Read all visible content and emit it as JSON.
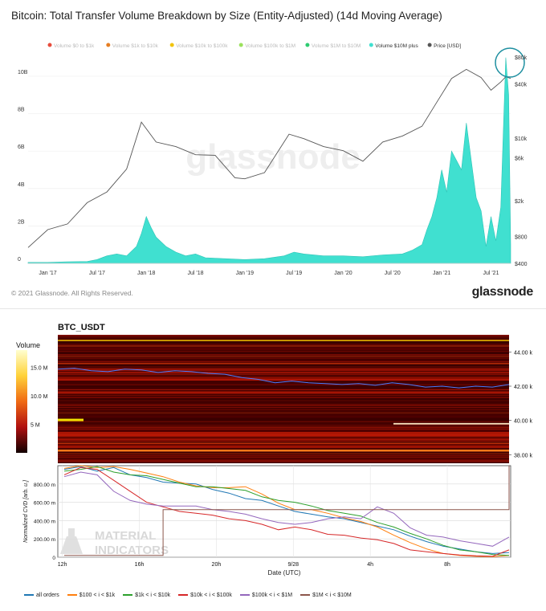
{
  "chart_data": [
    {
      "type": "area",
      "title": "Bitcoin: Total Transfer Volume Breakdown by Size (Entity-Adjusted) (14d Moving Average)",
      "legend": [
        {
          "name": "Volume $0 to $1k",
          "color": "#e74c3c",
          "active": false
        },
        {
          "name": "Volume $1k to $10k",
          "color": "#e67e22",
          "active": false
        },
        {
          "name": "Volume $10k to $100k",
          "color": "#f1c40f",
          "active": false
        },
        {
          "name": "Volume $100k to $1M",
          "color": "#9be15d",
          "active": false
        },
        {
          "name": "Volume $1M to $10M",
          "color": "#2ecc71",
          "active": false
        },
        {
          "name": "Volume $10M plus",
          "color": "#40e0d0",
          "active": true
        },
        {
          "name": "Price [USD]",
          "color": "#555555",
          "active": true
        }
      ],
      "x_ticks": [
        "Jan '17",
        "Jul '17",
        "Jan '18",
        "Jul '18",
        "Jan '19",
        "Jul '19",
        "Jan '20",
        "Jul '20",
        "Jan '21",
        "Jul '21"
      ],
      "y_left_ticks": [
        "0",
        "2B",
        "4B",
        "6B",
        "8B",
        "10B"
      ],
      "y_left_range": [
        0,
        11.5
      ],
      "y_right_ticks": [
        "$400",
        "$800",
        "$2k",
        "$6k",
        "$10k",
        "$40k",
        "$80k"
      ],
      "y_right_scale": "log",
      "watermark": "glassnode",
      "volume_series": {
        "name": "Volume $10M plus",
        "unit": "B USD",
        "x": [
          2016.8,
          2017.0,
          2017.2,
          2017.4,
          2017.5,
          2017.6,
          2017.7,
          2017.8,
          2017.9,
          2017.95,
          2018.0,
          2018.05,
          2018.1,
          2018.2,
          2018.3,
          2018.4,
          2018.5,
          2018.6,
          2018.8,
          2019.0,
          2019.2,
          2019.4,
          2019.5,
          2019.6,
          2019.8,
          2020.0,
          2020.2,
          2020.4,
          2020.6,
          2020.7,
          2020.8,
          2020.85,
          2020.9,
          2020.95,
          2021.0,
          2021.05,
          2021.1,
          2021.15,
          2021.2,
          2021.25,
          2021.3,
          2021.35,
          2021.4,
          2021.45,
          2021.5,
          2021.55,
          2021.6,
          2021.65,
          2021.68,
          2021.7
        ],
        "y": [
          0.05,
          0.05,
          0.08,
          0.1,
          0.2,
          0.4,
          0.5,
          0.4,
          0.9,
          1.6,
          2.5,
          1.9,
          1.4,
          0.9,
          0.6,
          0.4,
          0.5,
          0.3,
          0.25,
          0.2,
          0.25,
          0.4,
          0.6,
          0.5,
          0.4,
          0.4,
          0.35,
          0.45,
          0.5,
          0.7,
          1.0,
          1.8,
          2.5,
          3.5,
          5.0,
          3.8,
          6.0,
          5.5,
          5.0,
          7.5,
          5.5,
          3.5,
          2.8,
          0.9,
          2.5,
          1.2,
          3.0,
          11.0,
          9.0,
          1.0
        ]
      },
      "price_series": {
        "name": "Price [USD]",
        "unit": "USD",
        "x": [
          2016.8,
          2017.0,
          2017.2,
          2017.4,
          2017.6,
          2017.8,
          2017.95,
          2018.1,
          2018.3,
          2018.5,
          2018.7,
          2018.9,
          2019.0,
          2019.2,
          2019.45,
          2019.6,
          2019.8,
          2020.0,
          2020.2,
          2020.4,
          2020.6,
          2020.8,
          2020.95,
          2021.1,
          2021.25,
          2021.4,
          2021.5,
          2021.6,
          2021.65,
          2021.7
        ],
        "y": [
          600,
          950,
          1100,
          1900,
          2500,
          4500,
          15000,
          9000,
          8000,
          6500,
          6400,
          3600,
          3500,
          4100,
          11000,
          9800,
          8000,
          7200,
          5500,
          9000,
          10500,
          13500,
          25000,
          46000,
          58000,
          47000,
          34000,
          42000,
          48000,
          46000
        ]
      }
    },
    {
      "type": "heatmap",
      "title": "BTC_USDT",
      "colorbar_label": "Volume",
      "colorbar_ticks": [
        "15.0 M",
        "10.0 M",
        "5 M"
      ],
      "y_ticks": [
        "44.00 k",
        "42.00 k",
        "40.00 k",
        "38.00 k"
      ],
      "y_range": [
        37500,
        45000
      ],
      "price_line_y": [
        43000,
        43050,
        42900,
        42850,
        43000,
        42950,
        42800,
        42900,
        42850,
        42750,
        42700,
        42500,
        42400,
        42200,
        42300,
        42200,
        42150,
        42100,
        42150,
        42050,
        42200,
        42100,
        41950,
        42000,
        41900,
        42000,
        41950,
        42100
      ]
    },
    {
      "type": "line",
      "xlabel": "Date (UTC)",
      "ylabel": "Normalized CVD [arb. u.]",
      "x_ticks": [
        "12h",
        "16h",
        "20h",
        "9/28",
        "4h",
        "8h"
      ],
      "y_ticks": [
        "0",
        "200.00 m",
        "400.00 m",
        "600.00 m",
        "800.00 m"
      ],
      "ylim": [
        0,
        1000
      ],
      "watermark": [
        "MATERIAL",
        "INDICATORS"
      ],
      "series": [
        {
          "name": "all orders",
          "color": "#1f77b4",
          "values": [
            960,
            990,
            940,
            980,
            900,
            870,
            820,
            810,
            800,
            740,
            700,
            640,
            620,
            560,
            500,
            470,
            440,
            420,
            380,
            340,
            300,
            230,
            170,
            120,
            90,
            60,
            40,
            50
          ]
        },
        {
          "name": "$100 < i < $1k",
          "color": "#ff7f0e",
          "values": [
            970,
            1000,
            980,
            990,
            960,
            920,
            880,
            820,
            780,
            760,
            760,
            770,
            690,
            590,
            520,
            520,
            480,
            430,
            390,
            330,
            240,
            160,
            90,
            40,
            20,
            10,
            5,
            20
          ]
        },
        {
          "name": "$1k < i < $10k",
          "color": "#2ca02c",
          "values": [
            940,
            960,
            990,
            930,
            900,
            890,
            850,
            810,
            770,
            770,
            750,
            730,
            660,
            620,
            600,
            560,
            510,
            480,
            450,
            380,
            330,
            260,
            200,
            130,
            80,
            60,
            30,
            20
          ]
        },
        {
          "name": "$10k < i < $100k",
          "color": "#d62728",
          "values": [
            900,
            980,
            960,
            840,
            720,
            600,
            550,
            500,
            480,
            460,
            420,
            400,
            360,
            300,
            330,
            300,
            250,
            240,
            210,
            190,
            150,
            80,
            60,
            40,
            25,
            15,
            10,
            80
          ]
        },
        {
          "name": "$100k < i < $1M",
          "color": "#9467bd",
          "values": [
            880,
            930,
            900,
            720,
            620,
            580,
            560,
            560,
            560,
            520,
            500,
            470,
            420,
            380,
            360,
            380,
            420,
            440,
            420,
            550,
            480,
            320,
            240,
            220,
            180,
            150,
            120,
            220
          ]
        },
        {
          "name": "$1M < i < $10M",
          "color": "#8c564b",
          "values": [
            20,
            20,
            20,
            20,
            20,
            20,
            520,
            520,
            520,
            520,
            520,
            520,
            520,
            520,
            520,
            520,
            520,
            520,
            520,
            520,
            520,
            520,
            520,
            520,
            520,
            520,
            520,
            1000
          ]
        }
      ]
    }
  ],
  "copyright": "© 2021 Glassnode. All Rights Reserved.",
  "brand": "glassnode"
}
